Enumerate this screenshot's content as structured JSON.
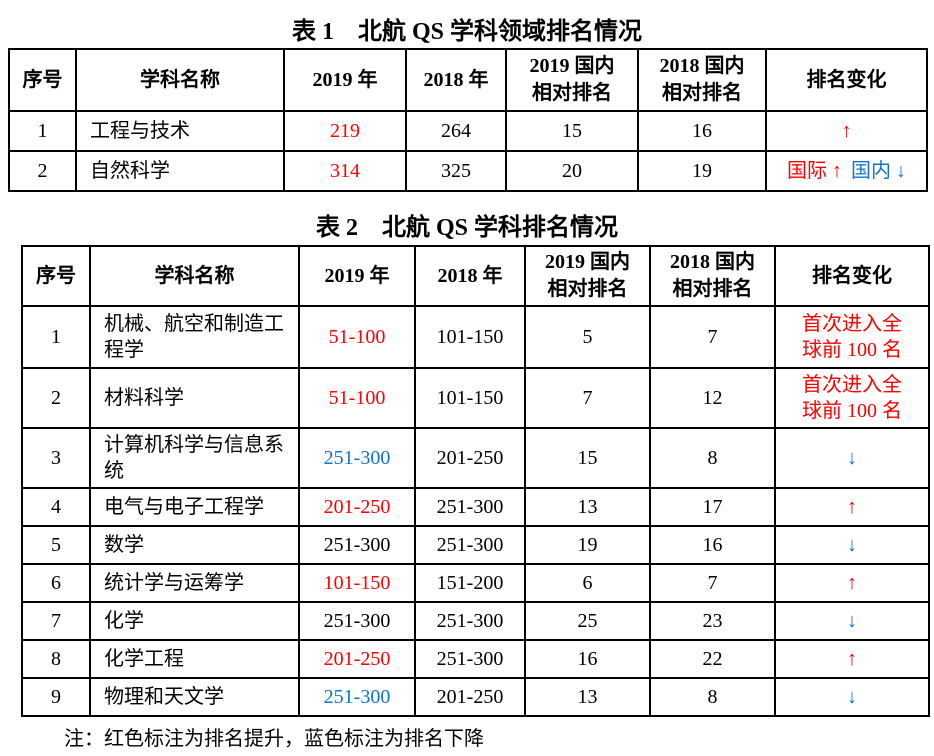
{
  "page": {
    "note": "注：红色标注为排名提升，蓝色标注为排名下降"
  },
  "colors": {
    "rank_up": "#FF0000",
    "rank_down": "#1074CC",
    "text": "#000000"
  },
  "tables": [
    {
      "title": "表 1　北航 QS 学科领域排名情况",
      "headers": [
        {
          "lines": [
            "序号"
          ]
        },
        {
          "lines": [
            "学科名称"
          ]
        },
        {
          "lines": [
            "2019 年"
          ]
        },
        {
          "lines": [
            "2018 年"
          ]
        },
        {
          "lines": [
            "2019 国内",
            "相对排名"
          ]
        },
        {
          "lines": [
            "2018 国内",
            "相对排名"
          ]
        },
        {
          "lines": [
            "排名变化"
          ]
        }
      ],
      "rows": [
        {
          "index": "1",
          "subject": "工程与技术",
          "rank_2019": "219",
          "rank_2019_color": "up",
          "rank_2018": "264",
          "domestic_2019": "15",
          "domestic_2018": "16",
          "change": [
            {
              "text": "↑",
              "direction": "up"
            }
          ]
        },
        {
          "index": "2",
          "subject": "自然科学",
          "rank_2019": "314",
          "rank_2019_color": "up",
          "rank_2018": "325",
          "domestic_2019": "20",
          "domestic_2018": "19",
          "change": [
            {
              "text": "国际 ↑",
              "direction": "up"
            },
            {
              "text": "国内 ↓",
              "direction": "down"
            }
          ]
        }
      ]
    },
    {
      "title": "表 2　北航 QS 学科排名情况",
      "headers": [
        {
          "lines": [
            "序号"
          ]
        },
        {
          "lines": [
            "学科名称"
          ]
        },
        {
          "lines": [
            "2019 年"
          ]
        },
        {
          "lines": [
            "2018 年"
          ]
        },
        {
          "lines": [
            "2019 国内",
            "相对排名"
          ]
        },
        {
          "lines": [
            "2018 国内",
            "相对排名"
          ]
        },
        {
          "lines": [
            "排名变化"
          ]
        }
      ],
      "rows": [
        {
          "index": "1",
          "subject": "机械、航空和制造工程学",
          "rank_2019": "51-100",
          "rank_2019_color": "up",
          "rank_2018": "101-150",
          "domestic_2019": "5",
          "domestic_2018": "7",
          "change": [
            {
              "text": "首次进入全\n球前 100 名",
              "direction": "up"
            }
          ]
        },
        {
          "index": "2",
          "subject": "材料科学",
          "rank_2019": "51-100",
          "rank_2019_color": "up",
          "rank_2018": "101-150",
          "domestic_2019": "7",
          "domestic_2018": "12",
          "change": [
            {
              "text": "首次进入全\n球前 100 名",
              "direction": "up"
            }
          ]
        },
        {
          "index": "3",
          "subject": "计算机科学与信息系统",
          "rank_2019": "251-300",
          "rank_2019_color": "down",
          "rank_2018": "201-250",
          "domestic_2019": "15",
          "domestic_2018": "8",
          "change": [
            {
              "text": "↓",
              "direction": "down"
            }
          ]
        },
        {
          "index": "4",
          "subject": "电气与电子工程学",
          "rank_2019": "201-250",
          "rank_2019_color": "up",
          "rank_2018": "251-300",
          "domestic_2019": "13",
          "domestic_2018": "17",
          "change": [
            {
              "text": "↑",
              "direction": "up"
            }
          ]
        },
        {
          "index": "5",
          "subject": "数学",
          "rank_2019": "251-300",
          "rank_2019_color": "default",
          "rank_2018": "251-300",
          "domestic_2019": "19",
          "domestic_2018": "16",
          "change": [
            {
              "text": "↓",
              "direction": "down"
            }
          ]
        },
        {
          "index": "6",
          "subject": "统计学与运筹学",
          "rank_2019": "101-150",
          "rank_2019_color": "up",
          "rank_2018": "151-200",
          "domestic_2019": "6",
          "domestic_2018": "7",
          "change": [
            {
              "text": "↑",
              "direction": "up"
            }
          ]
        },
        {
          "index": "7",
          "subject": "化学",
          "rank_2019": "251-300",
          "rank_2019_color": "default",
          "rank_2018": "251-300",
          "domestic_2019": "25",
          "domestic_2018": "23",
          "change": [
            {
              "text": "↓",
              "direction": "down"
            }
          ]
        },
        {
          "index": "8",
          "subject": "化学工程",
          "rank_2019": "201-250",
          "rank_2019_color": "up",
          "rank_2018": "251-300",
          "domestic_2019": "16",
          "domestic_2018": "22",
          "change": [
            {
              "text": "↑",
              "direction": "up"
            }
          ]
        },
        {
          "index": "9",
          "subject": "物理和天文学",
          "rank_2019": "251-300",
          "rank_2019_color": "down",
          "rank_2018": "201-250",
          "domestic_2019": "13",
          "domestic_2018": "8",
          "change": [
            {
              "text": "↓",
              "direction": "down"
            }
          ]
        }
      ]
    }
  ]
}
